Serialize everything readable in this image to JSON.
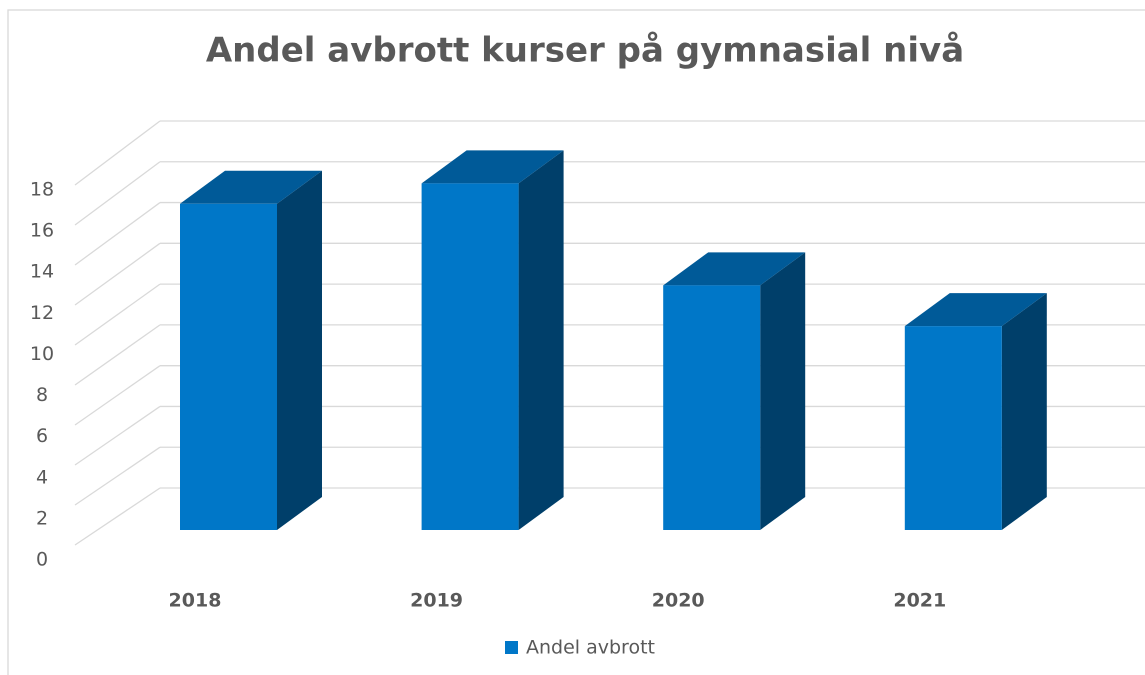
{
  "chart_data": {
    "type": "bar3d",
    "title": "Andel avbrott kurser på gymnasial nivå",
    "categories": [
      "2018",
      "2019",
      "2020",
      "2021"
    ],
    "series": [
      {
        "name": "Andel avbrott",
        "color": "#0077c8",
        "values": [
          16,
          17,
          12,
          10
        ]
      }
    ],
    "ylim": [
      0,
      18
    ],
    "yticks": [
      0,
      2,
      4,
      6,
      8,
      10,
      12,
      14,
      16,
      18
    ],
    "grid": true,
    "legend": "bottom"
  }
}
